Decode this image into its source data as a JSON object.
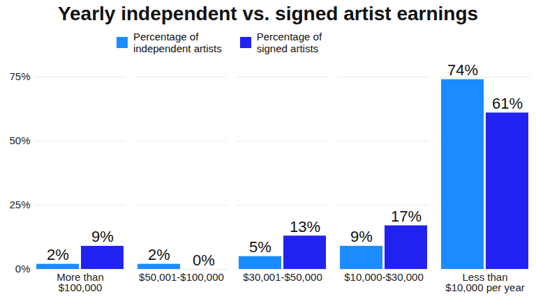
{
  "chart_data": {
    "type": "bar",
    "title": "Yearly independent vs. signed artist earnings",
    "categories": [
      "More than\n$100,000",
      "$50,001-$100,000",
      "$30,001-$50,000",
      "$10,000-$30,000",
      "Less than\n$10,000 per year"
    ],
    "series": [
      {
        "name": "Percentage of\nindependent artists",
        "color": "#1a8cff",
        "values": [
          2,
          2,
          5,
          9,
          74
        ],
        "value_labels": [
          "2%",
          "2%",
          "5%",
          "9%",
          "74%"
        ]
      },
      {
        "name": "Percentage of\nsigned artists",
        "color": "#2222f0",
        "values": [
          9,
          0,
          13,
          17,
          61
        ],
        "value_labels": [
          "9%",
          "0%",
          "13%",
          "17%",
          "61%"
        ]
      }
    ],
    "ylim": [
      0,
      75
    ],
    "yticks": [
      {
        "value": 0,
        "label": "0%"
      },
      {
        "value": 25,
        "label": "25%"
      },
      {
        "value": 50,
        "label": "50%"
      },
      {
        "value": 75,
        "label": "75%"
      }
    ],
    "grid": true,
    "legend": "top",
    "data_labels": true
  }
}
